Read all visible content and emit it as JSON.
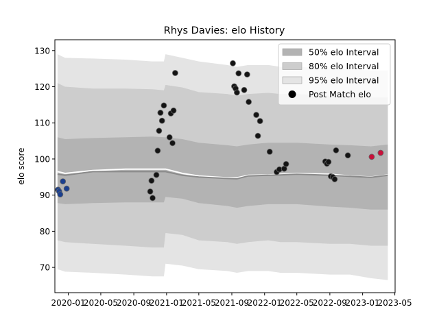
{
  "chart_data": {
    "type": "scatter",
    "title": "Rhys Davies: elo History",
    "xlabel": "",
    "ylabel": "elo score",
    "x_start": "2019-11-12",
    "x_end": "2023-05-02",
    "ylim": [
      63,
      133
    ],
    "x_ticks": [
      {
        "date": "2020-01-01",
        "label": "2020-01"
      },
      {
        "date": "2020-05-01",
        "label": "2020-05"
      },
      {
        "date": "2020-09-01",
        "label": "2020-09"
      },
      {
        "date": "2021-01-01",
        "label": "2021-01"
      },
      {
        "date": "2021-05-01",
        "label": "2021-05"
      },
      {
        "date": "2021-09-01",
        "label": "2021-09"
      },
      {
        "date": "2022-01-01",
        "label": "2022-01"
      },
      {
        "date": "2022-05-01",
        "label": "2022-05"
      },
      {
        "date": "2022-09-01",
        "label": "2022-09"
      },
      {
        "date": "2023-01-01",
        "label": "2023-01"
      },
      {
        "date": "2023-05-01",
        "label": "2023-05"
      }
    ],
    "y_ticks": [
      70,
      80,
      90,
      100,
      110,
      120,
      130
    ],
    "grid": false,
    "legend": {
      "placement": "upper right",
      "entries": [
        {
          "label": "50% elo Interval",
          "color": "#b3b3b3",
          "kind": "patch"
        },
        {
          "label": "80% elo Interval",
          "color": "#cdcdcd",
          "kind": "patch"
        },
        {
          "label": "95% elo Interval",
          "color": "#e4e4e4",
          "kind": "patch"
        },
        {
          "label": "Post Match elo",
          "color": "#000000",
          "kind": "marker"
        }
      ]
    },
    "colors": {
      "band95": "#e4e4e4",
      "band80": "#cdcdcd",
      "band50": "#b3b3b3",
      "mean_line": "#ffffff",
      "median_line": "#8a8a8a",
      "point_default": "#141414",
      "point_early": "#1a3f8f",
      "point_recent": "#c8103a"
    },
    "bands": [
      {
        "x": "2019-11-22",
        "mean": 96.5,
        "median": 95.8,
        "lo50": 87.8,
        "hi50": 106.0,
        "lo80": 77.5,
        "hi80": 121.0,
        "lo95": 69.5,
        "hi95": 129.0
      },
      {
        "x": "2019-12-20",
        "mean": 96.0,
        "median": 95.5,
        "lo50": 87.5,
        "hi50": 105.5,
        "lo80": 77.0,
        "hi80": 120.0,
        "lo95": 68.8,
        "hi95": 128.0
      },
      {
        "x": "2020-04-01",
        "mean": 96.8,
        "median": 96.5,
        "lo50": 87.8,
        "hi50": 105.8,
        "lo80": 76.5,
        "hi80": 119.5,
        "lo95": 68.5,
        "hi95": 127.8
      },
      {
        "x": "2020-08-01",
        "mean": 97.2,
        "median": 96.5,
        "lo50": 88.0,
        "hi50": 106.0,
        "lo80": 76.0,
        "hi80": 119.5,
        "lo95": 68.0,
        "hi95": 127.5
      },
      {
        "x": "2020-11-10",
        "mean": 97.2,
        "median": 96.5,
        "lo50": 88.0,
        "hi50": 106.2,
        "lo80": 75.5,
        "hi80": 119.3,
        "lo95": 67.5,
        "hi95": 127.0
      },
      {
        "x": "2020-12-22",
        "mean": 97.2,
        "median": 96.5,
        "lo50": 88.0,
        "hi50": 106.0,
        "lo80": 75.5,
        "hi80": 119.0,
        "lo95": 67.5,
        "hi95": 127.0
      },
      {
        "x": "2020-12-28",
        "mean": 97.2,
        "median": 96.5,
        "lo50": 89.5,
        "hi50": 106.0,
        "lo80": 79.5,
        "hi80": 120.5,
        "lo95": 71.0,
        "hi95": 129.0
      },
      {
        "x": "2021-03-01",
        "mean": 96.0,
        "median": 95.5,
        "lo50": 89.0,
        "hi50": 105.5,
        "lo80": 79.0,
        "hi80": 119.8,
        "lo95": 70.5,
        "hi95": 128.0
      },
      {
        "x": "2021-05-01",
        "mean": 95.3,
        "median": 95.0,
        "lo50": 87.8,
        "hi50": 104.5,
        "lo80": 77.5,
        "hi80": 118.5,
        "lo95": 69.5,
        "hi95": 127.0
      },
      {
        "x": "2021-08-15",
        "mean": 94.8,
        "median": 94.6,
        "lo50": 87.0,
        "hi50": 103.8,
        "lo80": 77.0,
        "hi80": 118.0,
        "lo95": 69.0,
        "hi95": 126.0
      },
      {
        "x": "2021-09-20",
        "mean": 94.8,
        "median": 94.5,
        "lo50": 86.5,
        "hi50": 103.5,
        "lo80": 76.5,
        "hi80": 117.5,
        "lo95": 68.5,
        "hi95": 125.5
      },
      {
        "x": "2021-11-01",
        "mean": 95.5,
        "median": 95.3,
        "lo50": 87.0,
        "hi50": 104.0,
        "lo80": 77.0,
        "hi80": 118.0,
        "lo95": 69.0,
        "hi95": 126.0
      },
      {
        "x": "2022-01-15",
        "mean": 95.6,
        "median": 95.5,
        "lo50": 87.5,
        "hi50": 104.5,
        "lo80": 77.5,
        "hi80": 118.3,
        "lo95": 69.0,
        "hi95": 126.0
      },
      {
        "x": "2022-03-01",
        "mean": 95.8,
        "median": 95.6,
        "lo50": 87.5,
        "hi50": 104.5,
        "lo80": 77.0,
        "hi80": 118.0,
        "lo95": 68.5,
        "hi95": 125.5
      },
      {
        "x": "2022-05-01",
        "mean": 96.0,
        "median": 95.8,
        "lo50": 87.5,
        "hi50": 104.5,
        "lo80": 77.0,
        "hi80": 118.0,
        "lo95": 68.5,
        "hi95": 125.5
      },
      {
        "x": "2022-09-01",
        "mean": 95.8,
        "median": 95.5,
        "lo50": 86.8,
        "hi50": 104.0,
        "lo80": 76.5,
        "hi80": 117.5,
        "lo95": 68.0,
        "hi95": 125.0
      },
      {
        "x": "2022-11-15",
        "mean": 95.3,
        "median": 95.2,
        "lo50": 86.5,
        "hi50": 103.8,
        "lo80": 76.5,
        "hi80": 117.0,
        "lo95": 68.0,
        "hi95": 124.8
      },
      {
        "x": "2023-02-01",
        "mean": 95.0,
        "median": 94.9,
        "lo50": 86.0,
        "hi50": 103.5,
        "lo80": 76.0,
        "hi80": 117.0,
        "lo95": 67.0,
        "hi95": 124.5
      },
      {
        "x": "2023-04-05",
        "mean": 95.6,
        "median": 95.5,
        "lo50": 86.0,
        "hi50": 104.0,
        "lo80": 76.0,
        "hi80": 117.0,
        "lo95": 66.5,
        "hi95": 124.5
      }
    ],
    "points": [
      {
        "x": "2019-11-24",
        "y": 91.5,
        "tone": "early"
      },
      {
        "x": "2019-11-28",
        "y": 91.0,
        "tone": "early"
      },
      {
        "x": "2019-12-02",
        "y": 90.2,
        "tone": "early"
      },
      {
        "x": "2019-12-12",
        "y": 93.8,
        "tone": "early"
      },
      {
        "x": "2019-12-26",
        "y": 91.8,
        "tone": "early"
      },
      {
        "x": "2020-11-01",
        "y": 91.0
      },
      {
        "x": "2020-11-06",
        "y": 94.0
      },
      {
        "x": "2020-11-10",
        "y": 89.2
      },
      {
        "x": "2020-11-24",
        "y": 95.6
      },
      {
        "x": "2020-11-29",
        "y": 102.3
      },
      {
        "x": "2020-12-04",
        "y": 107.8
      },
      {
        "x": "2020-12-09",
        "y": 112.8
      },
      {
        "x": "2020-12-15",
        "y": 110.6
      },
      {
        "x": "2020-12-22",
        "y": 114.8
      },
      {
        "x": "2021-01-12",
        "y": 106.0
      },
      {
        "x": "2021-01-17",
        "y": 112.6
      },
      {
        "x": "2021-01-23",
        "y": 104.4
      },
      {
        "x": "2021-01-27",
        "y": 113.4
      },
      {
        "x": "2021-02-02",
        "y": 123.8
      },
      {
        "x": "2021-09-05",
        "y": 126.5
      },
      {
        "x": "2021-09-10",
        "y": 120.1
      },
      {
        "x": "2021-09-15",
        "y": 119.5
      },
      {
        "x": "2021-09-20",
        "y": 118.4
      },
      {
        "x": "2021-09-26",
        "y": 123.7
      },
      {
        "x": "2021-10-17",
        "y": 119.1
      },
      {
        "x": "2021-10-28",
        "y": 123.4
      },
      {
        "x": "2021-11-03",
        "y": 115.8
      },
      {
        "x": "2021-12-01",
        "y": 112.2
      },
      {
        "x": "2021-12-07",
        "y": 106.4
      },
      {
        "x": "2021-12-15",
        "y": 110.5
      },
      {
        "x": "2022-01-20",
        "y": 102.0
      },
      {
        "x": "2022-02-15",
        "y": 96.4
      },
      {
        "x": "2022-02-25",
        "y": 97.1
      },
      {
        "x": "2022-03-15",
        "y": 97.3
      },
      {
        "x": "2022-03-22",
        "y": 98.6
      },
      {
        "x": "2022-08-15",
        "y": 99.3
      },
      {
        "x": "2022-08-21",
        "y": 98.7
      },
      {
        "x": "2022-08-27",
        "y": 99.2
      },
      {
        "x": "2022-09-05",
        "y": 95.2
      },
      {
        "x": "2022-09-12",
        "y": 95.0
      },
      {
        "x": "2022-09-19",
        "y": 94.4
      },
      {
        "x": "2022-09-24",
        "y": 102.4
      },
      {
        "x": "2022-11-07",
        "y": 101.0
      },
      {
        "x": "2023-02-04",
        "y": 100.6,
        "tone": "recent"
      },
      {
        "x": "2023-03-09",
        "y": 101.7,
        "tone": "recent"
      }
    ]
  }
}
